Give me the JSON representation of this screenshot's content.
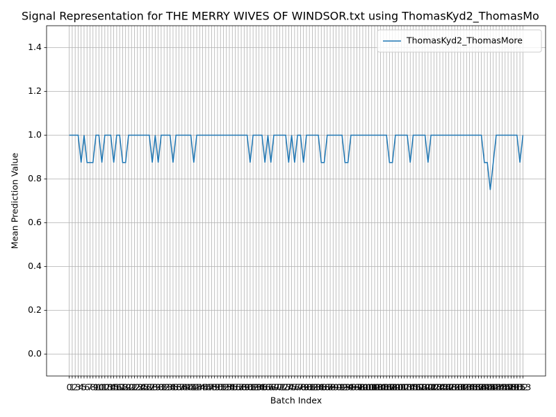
{
  "chart_data": {
    "type": "line",
    "title": "Signal Representation for THE MERRY WIVES OF WINDSOR.txt using ThomasKyd2_ThomasMo",
    "x_label": "Batch Index",
    "y_label": "Mean Prediction Value",
    "x": [
      0,
      1,
      2,
      3,
      4,
      5,
      6,
      7,
      8,
      9,
      10,
      11,
      12,
      13,
      14,
      15,
      16,
      17,
      18,
      19,
      20,
      21,
      22,
      23,
      24,
      25,
      26,
      27,
      28,
      29,
      30,
      31,
      32,
      33,
      34,
      35,
      36,
      37,
      38,
      39,
      40,
      41,
      42,
      43,
      44,
      45,
      46,
      47,
      48,
      49,
      50,
      51,
      52,
      53,
      54,
      55,
      56,
      57,
      58,
      59,
      60,
      61,
      62,
      63,
      64,
      65,
      66,
      67,
      68,
      69,
      70,
      71,
      72,
      73,
      74,
      75,
      76,
      77,
      78,
      79,
      80,
      81,
      82,
      83,
      84,
      85,
      86,
      87,
      88,
      89,
      90,
      91,
      92,
      93,
      94,
      95,
      96,
      97,
      98,
      99,
      100,
      101,
      102,
      103,
      104,
      105,
      106,
      107,
      108,
      109,
      110,
      111,
      112,
      113,
      114,
      115,
      116,
      117,
      118,
      119,
      120,
      121,
      122,
      123,
      124,
      125,
      126,
      127,
      128,
      129,
      130,
      131,
      132,
      133,
      134,
      135,
      136,
      137,
      138,
      139,
      140,
      141,
      142,
      143,
      144,
      145,
      146,
      147,
      148,
      149,
      150,
      151,
      152,
      153
    ],
    "series": [
      {
        "name": "ThomasKyd2_ThomasMore",
        "color": "#1f77b4",
        "values": [
          1,
          1,
          1,
          1,
          0.875,
          1,
          0.875,
          0.875,
          0.875,
          1,
          1,
          0.875,
          1,
          1,
          1,
          0.875,
          1,
          1,
          0.875,
          0.875,
          1,
          1,
          1,
          1,
          1,
          1,
          1,
          1,
          0.875,
          1,
          0.875,
          1,
          1,
          1,
          1,
          0.875,
          1,
          1,
          1,
          1,
          1,
          1,
          0.875,
          1,
          1,
          1,
          1,
          1,
          1,
          1,
          1,
          1,
          1,
          1,
          1,
          1,
          1,
          1,
          1,
          1,
          1,
          0.875,
          1,
          1,
          1,
          1,
          0.875,
          1,
          0.875,
          1,
          1,
          1,
          1,
          1,
          0.875,
          1,
          0.875,
          1,
          1,
          0.875,
          1,
          1,
          1,
          1,
          1,
          0.875,
          0.875,
          1,
          1,
          1,
          1,
          1,
          1,
          0.875,
          0.875,
          1,
          1,
          1,
          1,
          1,
          1,
          1,
          1,
          1,
          1,
          1,
          1,
          1,
          0.875,
          0.875,
          1,
          1,
          1,
          1,
          1,
          0.875,
          1,
          1,
          1,
          1,
          1,
          0.875,
          1,
          1,
          1,
          1,
          1,
          1,
          1,
          1,
          1,
          1,
          1,
          1,
          1,
          1,
          1,
          1,
          1,
          1,
          0.875,
          0.875,
          0.75,
          0.875,
          1,
          1,
          1,
          1,
          1,
          1,
          1,
          1,
          0.875,
          1
        ]
      }
    ],
    "xlim": [
      -7.65,
      160.65
    ],
    "xticks": [
      0,
      1,
      2,
      3,
      4,
      5,
      6,
      7,
      8,
      9,
      10,
      11,
      12,
      13,
      14,
      15,
      16,
      17,
      18,
      19,
      20,
      21,
      22,
      23,
      24,
      25,
      26,
      27,
      28,
      29,
      30,
      31,
      32,
      33,
      34,
      35,
      36,
      37,
      38,
      39,
      40,
      41,
      42,
      43,
      44,
      45,
      46,
      47,
      48,
      49,
      50,
      51,
      52,
      53,
      54,
      55,
      56,
      57,
      58,
      59,
      60,
      61,
      62,
      63,
      64,
      65,
      66,
      67,
      68,
      69,
      70,
      71,
      72,
      73,
      74,
      75,
      76,
      77,
      78,
      79,
      80,
      81,
      82,
      83,
      84,
      85,
      86,
      87,
      88,
      89,
      90,
      91,
      92,
      93,
      94,
      95,
      96,
      97,
      98,
      99,
      100,
      101,
      102,
      103,
      104,
      105,
      106,
      107,
      108,
      109,
      110,
      111,
      112,
      113,
      114,
      115,
      116,
      117,
      118,
      119,
      120,
      121,
      122,
      123,
      124,
      125,
      126,
      127,
      128,
      129,
      130,
      131,
      132,
      133,
      134,
      135,
      136,
      137,
      138,
      139,
      140,
      141,
      142,
      143,
      144,
      145,
      146,
      147,
      148,
      149,
      150,
      151,
      152,
      153
    ],
    "ylim": [
      -0.1,
      1.5
    ],
    "yticks": [
      {
        "value": 0,
        "label": "0.0"
      },
      0.2,
      0.4,
      0.6,
      0.8,
      {
        "value": 1,
        "label": "1.0"
      },
      1.2,
      1.4
    ],
    "grid": true,
    "legend": "upper right"
  }
}
